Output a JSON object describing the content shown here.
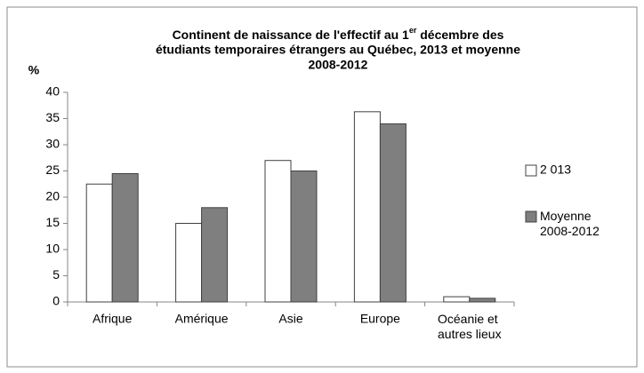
{
  "chart_data": {
    "type": "bar",
    "title": [
      "Continent de naissance de l'effectif au 1er décembre des",
      "étudiants temporaires étrangers au Québec, 2013  et moyenne",
      "2008-2012"
    ],
    "ylabel": "%",
    "categories": [
      "Afrique",
      "Amérique",
      "Asie",
      "Europe",
      "Océanie et autres lieux"
    ],
    "series": [
      {
        "name": "2 013",
        "color": "#ffffff",
        "values": [
          22.5,
          15,
          27,
          36.3,
          1
        ]
      },
      {
        "name": "Moyenne 2008-2012",
        "color": "#7f7f7f",
        "values": [
          24.5,
          18,
          25,
          34,
          0.7
        ]
      }
    ],
    "ylim": [
      0,
      40
    ],
    "yticks": [
      0,
      5,
      10,
      15,
      20,
      25,
      30,
      35,
      40
    ],
    "grid": false,
    "legend": "right"
  }
}
